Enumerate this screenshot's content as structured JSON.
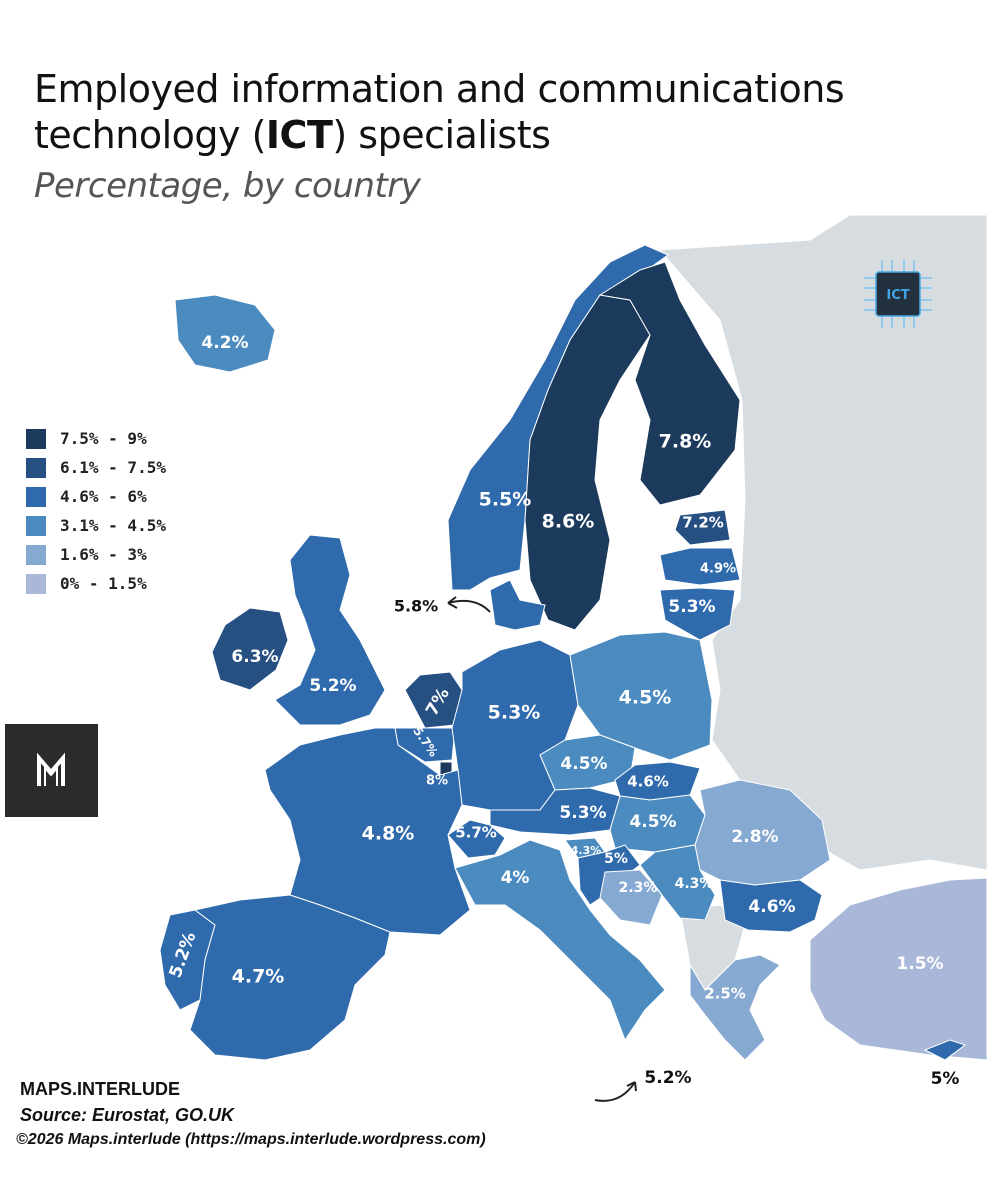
{
  "title": {
    "line1": "Employed information and communications",
    "line2_pre": "technology (",
    "line2_bold": "ICT",
    "line2_post": ") specialists"
  },
  "subtitle": "Percentage, by country",
  "legend": [
    {
      "label": "7.5% - 9%",
      "color": "#1b3a5c"
    },
    {
      "label": "6.1% - 7.5%",
      "color": "#264f82"
    },
    {
      "label": "4.6% - 6%",
      "color": "#2f6aac"
    },
    {
      "label": "3.1% - 4.5%",
      "color": "#4c8bc0"
    },
    {
      "label": "1.6% - 3%",
      "color": "#86a9d2"
    },
    {
      "label": "0% - 1.5%",
      "color": "#a9b8d9"
    }
  ],
  "colors": {
    "non_data_land": "#d6dcdf",
    "water": "#ffffff"
  },
  "countries": [
    {
      "name": "Iceland",
      "label": "4.2%",
      "value": 4.2
    },
    {
      "name": "Norway",
      "label": "5.5%",
      "value": 5.5
    },
    {
      "name": "Sweden",
      "label": "8.6%",
      "value": 8.6
    },
    {
      "name": "Finland",
      "label": "7.8%",
      "value": 7.8
    },
    {
      "name": "Estonia",
      "label": "7.2%",
      "value": 7.2
    },
    {
      "name": "Latvia",
      "label": "4.9%",
      "value": 4.9
    },
    {
      "name": "Lithuania",
      "label": "5.3%",
      "value": 5.3
    },
    {
      "name": "Denmark",
      "label": "5.8%",
      "value": 5.8
    },
    {
      "name": "Ireland",
      "label": "6.3%",
      "value": 6.3
    },
    {
      "name": "United Kingdom",
      "label": "5.2%",
      "value": 5.2
    },
    {
      "name": "Netherlands",
      "label": "7%",
      "value": 7
    },
    {
      "name": "Belgium",
      "label": "5.7%",
      "value": 5.7
    },
    {
      "name": "Luxembourg",
      "label": "8%",
      "value": 8
    },
    {
      "name": "Germany",
      "label": "5.3%",
      "value": 5.3
    },
    {
      "name": "Poland",
      "label": "4.5%",
      "value": 4.5
    },
    {
      "name": "Czechia",
      "label": "4.5%",
      "value": 4.5
    },
    {
      "name": "Slovakia",
      "label": "4.6%",
      "value": 4.6
    },
    {
      "name": "Austria",
      "label": "5.3%",
      "value": 5.3
    },
    {
      "name": "Hungary",
      "label": "4.5%",
      "value": 4.5
    },
    {
      "name": "Romania",
      "label": "2.8%",
      "value": 2.8
    },
    {
      "name": "France",
      "label": "4.8%",
      "value": 4.8
    },
    {
      "name": "Switzerland",
      "label": "5.7%",
      "value": 5.7
    },
    {
      "name": "Slovenia",
      "label": "4.3%",
      "value": 4.3
    },
    {
      "name": "Croatia",
      "label": "5%",
      "value": 5
    },
    {
      "name": "Bosnia and Herzegovina",
      "label": "2.3%",
      "value": 2.3
    },
    {
      "name": "Serbia",
      "label": "4.3%",
      "value": 4.3
    },
    {
      "name": "Bulgaria",
      "label": "4.6%",
      "value": 4.6
    },
    {
      "name": "Italy",
      "label": "4%",
      "value": 4
    },
    {
      "name": "Portugal",
      "label": "5.2%",
      "value": 5.2
    },
    {
      "name": "Spain",
      "label": "4.7%",
      "value": 4.7
    },
    {
      "name": "Greece",
      "label": "2.5%",
      "value": 2.5
    },
    {
      "name": "Turkey",
      "label": "1.5%",
      "value": 1.5
    },
    {
      "name": "Malta",
      "label": "5.2%",
      "value": 5.2
    },
    {
      "name": "Cyprus",
      "label": "5%",
      "value": 5
    }
  ],
  "logo": {
    "letters": "M"
  },
  "badge": {
    "text": "ICT"
  },
  "credits": {
    "brand": "MAPS.INTERLUDE",
    "source": "Source: Eurostat, GO.UK",
    "copyright": "©2026 Maps.interlude (https://maps.interlude.wordpress.com)"
  }
}
